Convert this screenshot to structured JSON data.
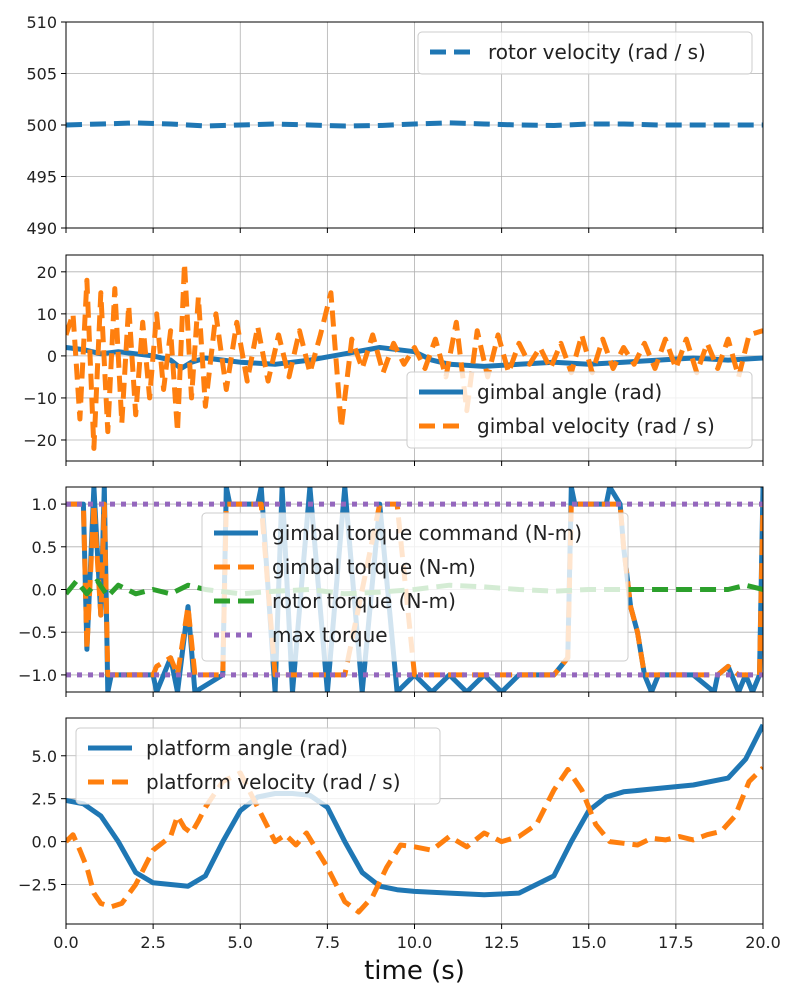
{
  "chart_data": [
    {
      "type": "line",
      "xlim": [
        0,
        20
      ],
      "ylim": [
        490,
        510
      ],
      "yticks": [
        490,
        495,
        500,
        505,
        510
      ],
      "ytick_labels": [
        "490",
        "495",
        "500",
        "505",
        "510"
      ],
      "grid": true,
      "legend": "top-right",
      "series": [
        {
          "name": "rotor velocity (rad / s)",
          "color": "#1f77b4",
          "style": "dashed",
          "x": [
            0,
            1,
            2,
            3,
            4,
            5,
            6,
            7,
            8,
            9,
            10,
            11,
            12,
            13,
            14,
            15,
            16,
            17,
            18,
            19,
            20
          ],
          "y": [
            500.0,
            500.1,
            500.2,
            500.1,
            499.9,
            500.0,
            500.1,
            500.0,
            499.9,
            499.95,
            500.1,
            500.2,
            500.1,
            500.0,
            499.95,
            500.1,
            500.1,
            500.0,
            500.0,
            500.0,
            500.0
          ]
        }
      ]
    },
    {
      "type": "line",
      "xlim": [
        0,
        20
      ],
      "ylim": [
        -25,
        24
      ],
      "yticks": [
        -20,
        -10,
        0,
        10,
        20
      ],
      "ytick_labels": [
        "−20",
        "−10",
        "0",
        "10",
        "20"
      ],
      "grid": true,
      "legend": "bottom-right",
      "series": [
        {
          "name": "gimbal angle (rad)",
          "color": "#1f77b4",
          "style": "solid",
          "x": [
            0,
            0.5,
            1,
            1.5,
            2,
            2.5,
            3,
            3.3,
            3.6,
            4,
            4.5,
            5,
            6,
            7,
            8,
            9,
            10,
            10.5,
            11,
            12,
            13,
            14,
            15,
            16,
            17,
            18,
            19,
            20
          ],
          "y": [
            2.0,
            1.5,
            0.5,
            1.0,
            0.5,
            0.0,
            -1.0,
            -3.0,
            -1.5,
            -0.5,
            -1.0,
            -1.5,
            -2.0,
            -1.0,
            0.5,
            2.0,
            1.0,
            -1.0,
            -2.0,
            -2.5,
            -2.0,
            -1.5,
            -2.0,
            -1.5,
            -1.0,
            -0.5,
            -1.0,
            -0.5
          ]
        },
        {
          "name": "gimbal velocity (rad / s)",
          "color": "#ff7f0e",
          "style": "dashed",
          "x": [
            0,
            0.2,
            0.4,
            0.6,
            0.8,
            1.0,
            1.2,
            1.4,
            1.6,
            1.8,
            2.0,
            2.2,
            2.4,
            2.6,
            2.8,
            3.0,
            3.2,
            3.4,
            3.6,
            3.8,
            4.0,
            4.3,
            4.6,
            4.9,
            5.2,
            5.5,
            5.8,
            6.1,
            6.4,
            6.7,
            7.0,
            7.3,
            7.6,
            7.9,
            8.2,
            8.5,
            8.8,
            9.1,
            9.4,
            9.7,
            10.0,
            10.3,
            10.6,
            10.9,
            11.2,
            11.5,
            11.8,
            12.1,
            12.4,
            12.7,
            13.0,
            13.3,
            13.6,
            13.9,
            14.2,
            14.5,
            14.8,
            15.1,
            15.4,
            15.7,
            16.0,
            16.3,
            16.6,
            16.9,
            17.2,
            17.5,
            17.8,
            18.1,
            18.4,
            18.7,
            19.0,
            19.3,
            19.6,
            20.0
          ],
          "y": [
            5,
            10,
            -15,
            18,
            -22,
            15,
            -18,
            16,
            -16,
            12,
            -14,
            8,
            -10,
            10,
            -8,
            6,
            -18,
            22,
            -10,
            14,
            -12,
            10,
            -8,
            8,
            -6,
            7,
            -6,
            5,
            -5,
            6,
            -4,
            5,
            15,
            -17,
            4,
            -3,
            5,
            -4,
            3,
            -2,
            2,
            -3,
            4,
            -5,
            8,
            -13,
            6,
            -5,
            5,
            -4,
            3,
            -2,
            2,
            -3,
            3,
            -4,
            5,
            -4,
            4,
            -3,
            2,
            -2,
            3,
            -3,
            4,
            -3,
            4,
            -4,
            3,
            -3,
            4,
            -5,
            5,
            6
          ]
        }
      ]
    },
    {
      "type": "line",
      "xlim": [
        0,
        20
      ],
      "ylim": [
        -1.2,
        1.2
      ],
      "yticks": [
        -1.0,
        -0.5,
        0.0,
        0.5,
        1.0
      ],
      "ytick_labels": [
        "−1.0",
        "−0.5",
        "0.0",
        "0.5",
        "1.0"
      ],
      "grid": true,
      "legend": "center",
      "series": [
        {
          "name": "gimbal torque command (N-m)",
          "color": "#1f77b4",
          "style": "solid",
          "x": [
            0,
            0.5,
            0.6,
            0.8,
            1.0,
            1.1,
            1.2,
            1.3,
            1.4,
            2.5,
            2.6,
            3.0,
            3.2,
            3.5,
            3.7,
            4.5,
            4.6,
            4.7,
            5.5,
            5.6,
            6.0,
            6.2,
            6.5,
            7.0,
            7.5,
            8.0,
            8.5,
            9.0,
            9.5,
            10.0,
            10.5,
            11.0,
            11.5,
            12.0,
            12.5,
            13.0,
            14.0,
            14.4,
            14.5,
            14.6,
            15.5,
            15.6,
            15.9,
            16.0,
            16.2,
            16.4,
            16.6,
            16.8,
            17.0,
            18.0,
            18.6,
            18.7,
            19.0,
            19.3,
            19.5,
            19.7,
            19.9,
            20.0
          ],
          "y": [
            1.0,
            1.0,
            -0.7,
            1.2,
            -0.3,
            1.2,
            -1.2,
            -1.0,
            -1.0,
            -1.0,
            -1.2,
            -0.8,
            -1.2,
            -0.2,
            -1.2,
            -1.0,
            1.2,
            1.0,
            1.0,
            1.2,
            -1.2,
            1.2,
            -1.2,
            1.2,
            -1.2,
            1.2,
            -1.2,
            1.0,
            -1.2,
            -1.0,
            -1.2,
            -1.0,
            -1.2,
            -1.0,
            -1.2,
            -1.0,
            -1.0,
            -0.8,
            1.2,
            1.0,
            1.0,
            1.2,
            1.0,
            0.5,
            -0.2,
            -0.5,
            -1.0,
            -1.2,
            -1.0,
            -1.0,
            -1.2,
            -1.0,
            -0.9,
            -1.2,
            -1.0,
            -1.2,
            -1.0,
            1.2
          ]
        },
        {
          "name": "gimbal torque (N-m)",
          "color": "#ff7f0e",
          "style": "dashed",
          "x": [
            0,
            0.5,
            0.6,
            0.8,
            1.0,
            1.1,
            1.2,
            1.3,
            1.4,
            2.5,
            2.6,
            3.0,
            3.2,
            3.5,
            3.7,
            4.5,
            4.6,
            4.7,
            5.5,
            5.6,
            6.0,
            7.0,
            8.0,
            9.0,
            9.5,
            10.0,
            11.0,
            12.0,
            13.0,
            14.0,
            14.4,
            14.5,
            14.6,
            15.5,
            15.6,
            15.9,
            16.0,
            16.2,
            16.4,
            16.6,
            16.8,
            17.0,
            18.0,
            18.6,
            18.7,
            19.0,
            19.3,
            19.5,
            19.7,
            19.9,
            20.0
          ],
          "y": [
            1.0,
            1.0,
            -0.7,
            1.0,
            -0.3,
            1.0,
            -1.0,
            -1.0,
            -1.0,
            -1.0,
            -0.9,
            -0.8,
            -1.0,
            -0.2,
            -1.0,
            -1.0,
            1.0,
            1.0,
            1.0,
            1.0,
            -1.0,
            -1.0,
            -1.0,
            1.0,
            1.0,
            -1.0,
            -1.0,
            -1.0,
            -1.0,
            -1.0,
            -0.8,
            1.0,
            1.0,
            1.0,
            1.0,
            1.0,
            0.5,
            -0.2,
            -0.5,
            -1.0,
            -1.0,
            -1.0,
            -1.0,
            -1.0,
            -1.0,
            -0.9,
            -1.0,
            -1.0,
            -1.0,
            -1.0,
            1.0
          ]
        },
        {
          "name": "rotor torque (N-m)",
          "color": "#2ca02c",
          "style": "dashed",
          "x": [
            0,
            0.3,
            0.6,
            0.9,
            1.2,
            1.5,
            2.0,
            2.5,
            3.0,
            3.5,
            4.0,
            5.0,
            6.0,
            7.0,
            8.0,
            9.0,
            10.0,
            11.0,
            12.0,
            13.0,
            14.0,
            15.0,
            16.0,
            17.0,
            18.0,
            19.0,
            19.5,
            20.0
          ],
          "y": [
            -0.05,
            0.1,
            -0.05,
            0.1,
            -0.08,
            0.05,
            -0.05,
            0.0,
            -0.05,
            0.05,
            0.0,
            -0.05,
            -0.02,
            0.0,
            -0.05,
            -0.03,
            0.0,
            0.05,
            0.03,
            0.0,
            -0.02,
            0.0,
            0.0,
            0.0,
            0.0,
            0.0,
            0.05,
            0.0
          ]
        },
        {
          "name": "max torque",
          "color": "#9467bd",
          "style": "dotted",
          "x": [
            0,
            20
          ],
          "y": [
            1.0,
            1.0
          ]
        },
        {
          "name": "",
          "color": "#9467bd",
          "style": "dotted",
          "x": [
            0,
            20
          ],
          "y": [
            -1.0,
            -1.0
          ]
        }
      ]
    },
    {
      "type": "line",
      "xlim": [
        0,
        20
      ],
      "ylim": [
        -4.8,
        7.2
      ],
      "yticks": [
        -2.5,
        0.0,
        2.5,
        5.0
      ],
      "ytick_labels": [
        "−2.5",
        "0.0",
        "2.5",
        "5.0"
      ],
      "xticks": [
        0,
        2.5,
        5,
        7.5,
        10,
        12.5,
        15,
        17.5,
        20
      ],
      "xtick_labels": [
        "0.0",
        "2.5",
        "5.0",
        "7.5",
        "10.0",
        "12.5",
        "15.0",
        "17.5",
        "20.0"
      ],
      "xlabel": "time (s)",
      "grid": true,
      "legend": "top-left",
      "series": [
        {
          "name": "platform angle (rad)",
          "color": "#1f77b4",
          "style": "solid",
          "x": [
            0,
            0.5,
            1.0,
            1.5,
            2.0,
            2.5,
            3.0,
            3.5,
            4.0,
            4.5,
            5.0,
            5.5,
            6.0,
            6.5,
            7.0,
            7.5,
            8.0,
            8.5,
            9.0,
            9.5,
            10.0,
            11.0,
            12.0,
            13.0,
            14.0,
            14.5,
            15.0,
            15.5,
            16.0,
            17.0,
            18.0,
            19.0,
            19.5,
            20.0
          ],
          "y": [
            2.4,
            2.2,
            1.5,
            0.0,
            -1.8,
            -2.4,
            -2.5,
            -2.6,
            -2.0,
            0.0,
            1.8,
            2.6,
            2.8,
            2.8,
            2.7,
            2.0,
            0.0,
            -1.8,
            -2.6,
            -2.8,
            -2.9,
            -3.0,
            -3.1,
            -3.0,
            -2.0,
            0.0,
            1.8,
            2.6,
            2.9,
            3.1,
            3.3,
            3.7,
            4.8,
            6.8
          ]
        },
        {
          "name": "platform velocity (rad / s)",
          "color": "#ff7f0e",
          "style": "dashed",
          "x": [
            0,
            0.2,
            0.4,
            0.6,
            0.8,
            1.0,
            1.3,
            1.6,
            2.0,
            2.5,
            3.0,
            3.2,
            3.4,
            3.6,
            3.8,
            4.0,
            4.5,
            5.0,
            5.5,
            6.0,
            6.3,
            6.6,
            6.9,
            7.2,
            7.5,
            8.0,
            8.4,
            8.8,
            9.2,
            9.6,
            10.0,
            10.5,
            11.0,
            11.5,
            12.0,
            12.5,
            13.0,
            13.5,
            14.0,
            14.4,
            14.8,
            15.2,
            15.6,
            16.0,
            16.4,
            16.8,
            17.2,
            17.6,
            18.0,
            18.4,
            18.8,
            19.2,
            19.6,
            20.0
          ],
          "y": [
            0.0,
            0.4,
            -0.5,
            -1.5,
            -3.0,
            -3.6,
            -3.8,
            -3.6,
            -2.5,
            -0.5,
            0.3,
            1.5,
            0.8,
            0.5,
            1.2,
            2.0,
            3.5,
            4.0,
            2.0,
            0.0,
            0.4,
            -0.2,
            0.5,
            -0.5,
            -1.5,
            -3.5,
            -4.1,
            -3.2,
            -1.5,
            -0.2,
            -0.3,
            -0.5,
            0.3,
            -0.3,
            0.5,
            0.0,
            0.3,
            1.0,
            3.0,
            4.2,
            3.0,
            1.0,
            0.0,
            -0.1,
            -0.2,
            0.2,
            0.1,
            0.3,
            0.1,
            0.4,
            0.6,
            1.5,
            3.5,
            4.3
          ]
        }
      ]
    }
  ]
}
